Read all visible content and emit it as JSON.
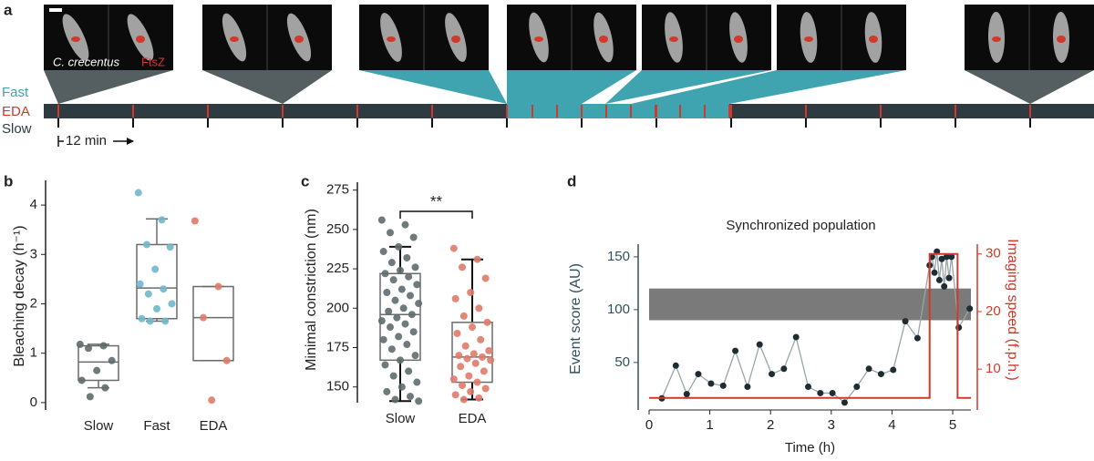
{
  "panel_a": {
    "panel": "a",
    "fast": "Fast",
    "eda": "EDA",
    "slow": "Slow",
    "interval": "12 min",
    "species": "C. crecentus",
    "protein": "FtsZ"
  },
  "chart_data": [
    {
      "type": "box",
      "panel": "b",
      "ylabel": "Bleaching decay (h⁻¹)",
      "categories": [
        "Slow",
        "Fast",
        "EDA"
      ],
      "ylim": [
        -0.15,
        4.5
      ],
      "yticks": [
        0,
        1,
        2,
        3,
        4
      ],
      "box_color": "#6b6b6b",
      "whisker_color": "#6b6b6b",
      "series": [
        {
          "name": "Slow",
          "color": "#5f6b6e",
          "q1": 0.45,
          "median": 0.82,
          "q3": 1.15,
          "whisker_low": 0.3,
          "whisker_high": 1.18,
          "points": [
            1.18,
            1.15,
            1.1,
            0.85,
            0.65,
            0.45,
            0.3,
            0.12
          ]
        },
        {
          "name": "Fast",
          "color": "#6fb8cc",
          "q1": 1.7,
          "median": 2.32,
          "q3": 3.2,
          "whisker_low": 1.65,
          "whisker_high": 3.72,
          "points": [
            4.25,
            3.7,
            3.2,
            3.15,
            2.7,
            2.4,
            2.3,
            2.2,
            2.0,
            1.9,
            1.7,
            1.65,
            1.65
          ]
        },
        {
          "name": "EDA",
          "color": "#e07a6a",
          "q1": 0.85,
          "median": 1.72,
          "q3": 2.35,
          "whisker_low": 0.85,
          "whisker_high": 2.35,
          "points": [
            3.68,
            2.35,
            1.72,
            0.85,
            0.05
          ]
        }
      ]
    },
    {
      "type": "box",
      "panel": "c",
      "ylabel": "Minimal constriction (nm)",
      "categories": [
        "Slow",
        "EDA"
      ],
      "annotation": "**",
      "ylim": [
        140,
        280
      ],
      "yticks": [
        150,
        175,
        200,
        225,
        250,
        275
      ],
      "box_color": "#6b6b6b",
      "whisker_color": "#111111",
      "series": [
        {
          "name": "Slow",
          "color": "#5f6b6e",
          "q1": 167,
          "median": 196,
          "q3": 222,
          "whisker_low": 141,
          "whisker_high": 239,
          "points": [
            256,
            253,
            248,
            245,
            239,
            236,
            232,
            229,
            226,
            224,
            222,
            220,
            218,
            215,
            212,
            210,
            208,
            205,
            203,
            200,
            198,
            196,
            194,
            192,
            190,
            188,
            185,
            182,
            180,
            177,
            174,
            170,
            167,
            164,
            160,
            157,
            153,
            150,
            147,
            144,
            142,
            141
          ]
        },
        {
          "name": "EDA",
          "color": "#e07a6a",
          "q1": 153,
          "median": 169,
          "q3": 191,
          "whisker_low": 142,
          "whisker_high": 231,
          "points": [
            238,
            231,
            226,
            219,
            210,
            206,
            200,
            195,
            191,
            188,
            184,
            180,
            176,
            173,
            171,
            170,
            169,
            168,
            167,
            165,
            163,
            160,
            157,
            155,
            153,
            151,
            149,
            147,
            145,
            143,
            142
          ]
        }
      ]
    },
    {
      "type": "line",
      "panel": "d",
      "title": "Synchronized population",
      "xlabel": "Time (h)",
      "ylabel": "Event score (AU)",
      "y2label": "Imaging speed (f.p.h.)",
      "xlim": [
        0,
        5.3
      ],
      "xticks": [
        0,
        1,
        2,
        3,
        4,
        5
      ],
      "ylim": [
        5,
        162
      ],
      "yticks": [
        50,
        100,
        150
      ],
      "y2lim": [
        2.9,
        31.7
      ],
      "y2ticks": [
        10,
        20,
        30
      ],
      "band": {
        "x": [
          0,
          5.3
        ],
        "y": [
          90,
          120
        ],
        "color": "#7a7a7a"
      },
      "series": [
        {
          "name": "Event score",
          "color": "#9aa5a8",
          "marker_color": "#1e2d33",
          "x": [
            0.21,
            0.44,
            0.62,
            0.81,
            1.02,
            1.22,
            1.42,
            1.62,
            1.82,
            2.02,
            2.22,
            2.42,
            2.62,
            2.82,
            3.02,
            3.22,
            3.42,
            3.62,
            3.82,
            4.02,
            4.22,
            4.42,
            4.62,
            4.66,
            4.7,
            4.74,
            4.78,
            4.82,
            4.86,
            4.9,
            4.94,
            4.98,
            5.1,
            5.28
          ],
          "values": [
            16,
            47,
            20,
            39,
            30,
            28,
            61,
            27,
            67,
            39,
            44,
            74,
            27,
            21,
            21,
            12,
            27,
            44,
            39,
            43,
            89,
            73,
            142,
            150,
            135,
            155,
            128,
            148,
            122,
            150,
            130,
            150,
            83,
            101
          ]
        },
        {
          "name": "Imaging speed",
          "color": "#d0392b",
          "axis": "y2",
          "x": [
            0,
            4.62,
            4.62,
            5.08,
            5.08,
            5.3
          ],
          "values": [
            5,
            5,
            30,
            30,
            5,
            5
          ]
        }
      ]
    }
  ]
}
